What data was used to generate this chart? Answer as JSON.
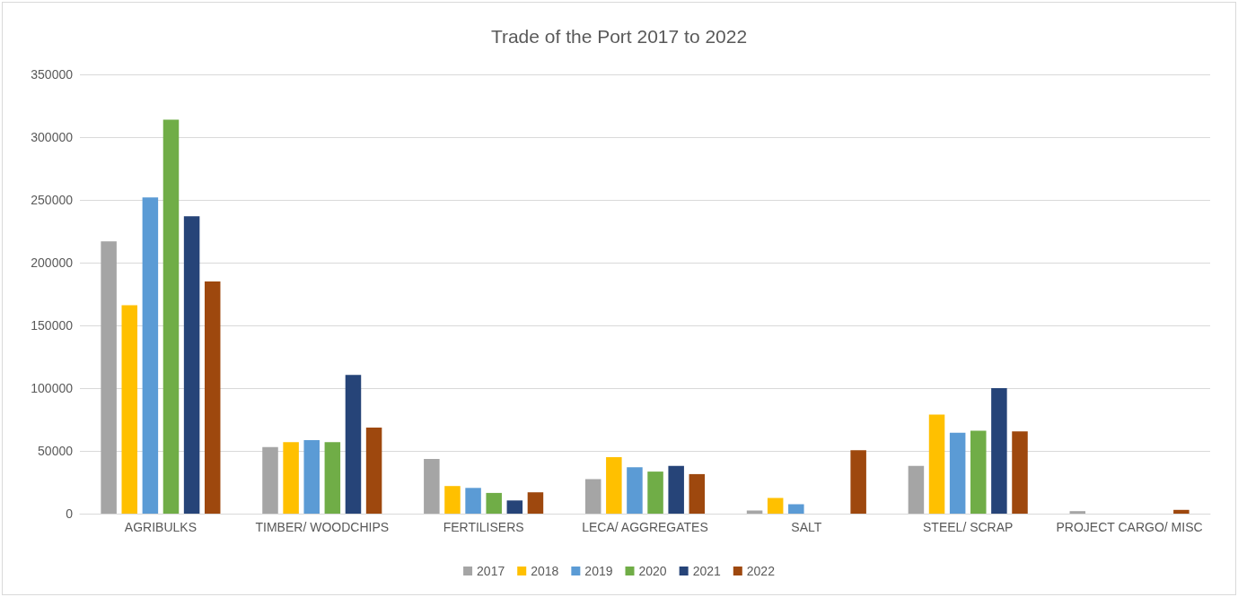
{
  "chart_data": {
    "type": "bar",
    "title": "Trade of the Port 2017 to 2022",
    "categories": [
      "AGRIBULKS",
      "TIMBER/ WOODCHIPS",
      "FERTILISERS",
      "LECA/ AGGREGATES",
      "SALT",
      "STEEL/ SCRAP",
      "PROJECT CARGO/ MISC"
    ],
    "series": [
      {
        "name": "2017",
        "color": "#a5a5a5",
        "values": [
          217000,
          53000,
          43500,
          27500,
          2500,
          38000,
          2000
        ]
      },
      {
        "name": "2018",
        "color": "#ffc000",
        "values": [
          166000,
          57000,
          22000,
          45000,
          12500,
          79000,
          0
        ]
      },
      {
        "name": "2019",
        "color": "#5b9bd5",
        "values": [
          252000,
          58500,
          20500,
          37000,
          7500,
          64500,
          0
        ]
      },
      {
        "name": "2020",
        "color": "#70ad47",
        "values": [
          314000,
          57000,
          16500,
          33500,
          0,
          66000,
          0
        ]
      },
      {
        "name": "2021",
        "color": "#264478",
        "values": [
          237000,
          110500,
          10500,
          38000,
          0,
          100000,
          0
        ]
      },
      {
        "name": "2022",
        "color": "#9e480e",
        "values": [
          185000,
          68500,
          17000,
          31500,
          50500,
          65500,
          3000
        ]
      }
    ],
    "ylim": [
      0,
      350000
    ],
    "yticks": [
      0,
      50000,
      100000,
      150000,
      200000,
      250000,
      300000,
      350000
    ],
    "grid": "y",
    "legend": "bottom"
  }
}
